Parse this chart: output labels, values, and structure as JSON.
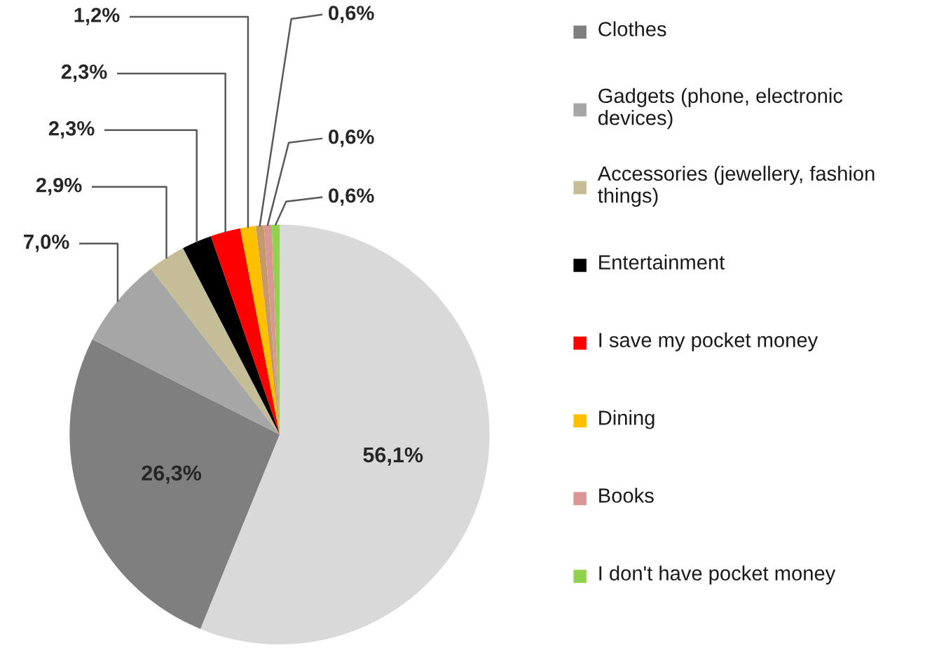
{
  "chart_data": {
    "type": "pie",
    "categories": [
      null,
      "Clothes",
      "Gadgets (phone, electronic devices)",
      "Accessories (jewellery, fashion things)",
      "Entertainment",
      "I save my pocket money",
      "Dining",
      null,
      "Books",
      "I don't have pocket money"
    ],
    "values": [
      56.1,
      26.3,
      7.0,
      2.9,
      2.3,
      2.3,
      1.2,
      0.6,
      0.6,
      0.6
    ],
    "value_labels": [
      "56,1%",
      "26,3%",
      "7,0%",
      "2,9%",
      "2,3%",
      "2,3%",
      "1,2%",
      "0,6%",
      "0,6%",
      "0,6%"
    ],
    "colors": [
      "#d9d9d9",
      "#7f7f7f",
      "#a6a6a6",
      "#c4bd97",
      "#000000",
      "#ff0000",
      "#ffc000",
      "#c49a6c",
      "#d99694",
      "#92d050"
    ],
    "legend": "right"
  }
}
